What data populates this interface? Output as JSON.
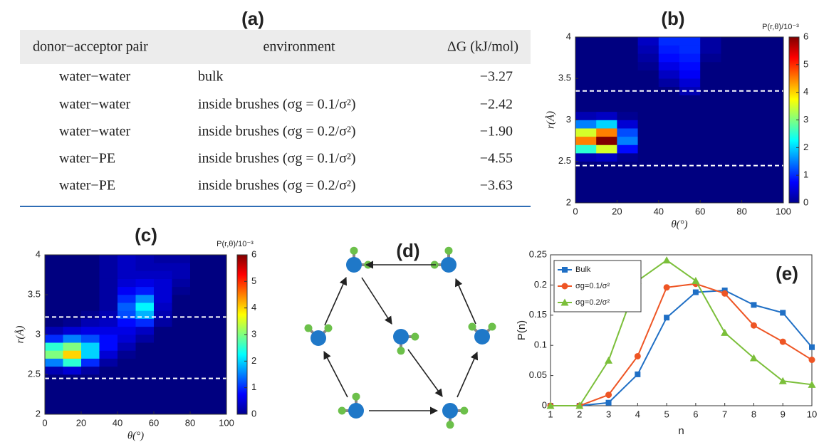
{
  "table": {
    "panel_label": "(a)",
    "header": [
      "donor−acceptor pair",
      "environment",
      "ΔG (kJ/mol)"
    ],
    "rows": [
      [
        "water−water",
        "bulk",
        "−3.27"
      ],
      [
        "water−water",
        "inside brushes (σg = 0.1/σ²)",
        "−2.42"
      ],
      [
        "water−water",
        "inside brushes (σg = 0.2/σ²)",
        "−1.90"
      ],
      [
        "water−PE",
        "inside brushes (σg = 0.1/σ²)",
        "−4.55"
      ],
      [
        "water−PE",
        "inside brushes (σg = 0.2/σ²)",
        "−3.63"
      ]
    ]
  },
  "diagram": {
    "panel_label": "(d)"
  },
  "chart_data": [
    {
      "type": "heatmap",
      "panel_label": "(b)",
      "xlabel": "θ(°)",
      "ylabel": "r(Å)",
      "colorbar_label": "P(r,θ)/10⁻³",
      "colormap": "jet",
      "x_bins": [
        0,
        10,
        20,
        30,
        40,
        50,
        60,
        70,
        80,
        90,
        100
      ],
      "y_bins": [
        2,
        2.1,
        2.2,
        2.3,
        2.4,
        2.5,
        2.6,
        2.7,
        2.8,
        2.9,
        3,
        3.1,
        3.2,
        3.3,
        3.4,
        3.5,
        3.6,
        3.7,
        3.8,
        3.9,
        4
      ],
      "z": [
        [
          0,
          0,
          0,
          0,
          0,
          0,
          0,
          0,
          0,
          0
        ],
        [
          0,
          0,
          0,
          0,
          0,
          0,
          0,
          0,
          0,
          0
        ],
        [
          0,
          0,
          0,
          0,
          0,
          0,
          0,
          0,
          0,
          0
        ],
        [
          0,
          0,
          0,
          0,
          0,
          0,
          0,
          0,
          0,
          0
        ],
        [
          0,
          0,
          0,
          0,
          0,
          0,
          0,
          0,
          0,
          0
        ],
        [
          0.3,
          0.4,
          0.1,
          0,
          0,
          0,
          0,
          0,
          0,
          0
        ],
        [
          2.5,
          3.5,
          0.8,
          0,
          0,
          0,
          0,
          0,
          0,
          0
        ],
        [
          4.5,
          6,
          1.5,
          0,
          0,
          0,
          0,
          0,
          0,
          0
        ],
        [
          3.5,
          4.5,
          1.2,
          0,
          0,
          0,
          0,
          0,
          0,
          0
        ],
        [
          1.5,
          2,
          0.5,
          0,
          0,
          0,
          0,
          0,
          0,
          0
        ],
        [
          0.3,
          0.4,
          0.1,
          0,
          0,
          0,
          0,
          0,
          0,
          0
        ],
        [
          0,
          0,
          0,
          0,
          0,
          0,
          0,
          0,
          0,
          0
        ],
        [
          0,
          0,
          0,
          0,
          0,
          0,
          0,
          0,
          0,
          0
        ],
        [
          0,
          0,
          0,
          0,
          0,
          0.3,
          0,
          0,
          0,
          0
        ],
        [
          0,
          0,
          0,
          0,
          0.2,
          0.5,
          0,
          0,
          0,
          0
        ],
        [
          0,
          0,
          0,
          0,
          0.4,
          0.7,
          0,
          0,
          0,
          0
        ],
        [
          0,
          0,
          0,
          0.1,
          0.6,
          0.8,
          0,
          0,
          0,
          0
        ],
        [
          0,
          0,
          0,
          0.2,
          0.8,
          0.9,
          0.1,
          0,
          0,
          0
        ],
        [
          0,
          0,
          0,
          0.3,
          0.9,
          1,
          0.2,
          0,
          0,
          0
        ],
        [
          0,
          0,
          0,
          0.4,
          1,
          1,
          0.2,
          0,
          0,
          0
        ]
      ],
      "xlim": [
        0,
        100
      ],
      "ylim": [
        2,
        4
      ],
      "xticks": [
        0,
        20,
        40,
        60,
        80,
        100
      ],
      "yticks": [
        2,
        2.5,
        3,
        3.5,
        4
      ],
      "zlim": [
        0,
        6
      ],
      "zticks": [
        0,
        1,
        2,
        3,
        4,
        5,
        6
      ],
      "hlines": [
        3.35,
        2.45
      ]
    },
    {
      "type": "heatmap",
      "panel_label": "(c)",
      "xlabel": "θ(°)",
      "ylabel": "r(Å)",
      "colorbar_label": "P(r,θ)/10⁻³",
      "colormap": "jet",
      "x_bins": [
        0,
        10,
        20,
        30,
        40,
        50,
        60,
        70,
        80,
        90,
        100
      ],
      "y_bins": [
        2,
        2.1,
        2.2,
        2.3,
        2.4,
        2.5,
        2.6,
        2.7,
        2.8,
        2.9,
        3,
        3.1,
        3.2,
        3.3,
        3.4,
        3.5,
        3.6,
        3.7,
        3.8,
        3.9,
        4
      ],
      "z": [
        [
          0,
          0,
          0,
          0,
          0,
          0,
          0,
          0,
          0,
          0
        ],
        [
          0,
          0,
          0,
          0,
          0,
          0,
          0,
          0,
          0,
          0
        ],
        [
          0,
          0,
          0,
          0,
          0,
          0,
          0,
          0,
          0,
          0
        ],
        [
          0,
          0,
          0,
          0,
          0,
          0,
          0,
          0,
          0,
          0
        ],
        [
          0,
          0,
          0,
          0,
          0,
          0,
          0,
          0,
          0,
          0
        ],
        [
          0.3,
          0.5,
          0.2,
          0,
          0,
          0,
          0,
          0,
          0,
          0
        ],
        [
          1.5,
          2.5,
          1,
          0.2,
          0,
          0,
          0,
          0,
          0,
          0
        ],
        [
          3,
          4,
          2,
          0.5,
          0.1,
          0,
          0,
          0,
          0,
          0
        ],
        [
          2.5,
          3,
          2,
          0.8,
          0.3,
          0,
          0,
          0,
          0,
          0
        ],
        [
          1,
          1.5,
          1.2,
          0.8,
          0.5,
          0.2,
          0,
          0,
          0,
          0
        ],
        [
          0.3,
          0.5,
          0.6,
          0.6,
          0.6,
          0.4,
          0,
          0,
          0,
          0
        ],
        [
          0,
          0.1,
          0.3,
          0.4,
          0.8,
          1,
          0.2,
          0,
          0,
          0
        ],
        [
          0,
          0,
          0.1,
          0.3,
          1.2,
          1.8,
          0.3,
          0,
          0,
          0
        ],
        [
          0,
          0,
          0,
          0.2,
          1.3,
          2.2,
          0.4,
          0,
          0,
          0
        ],
        [
          0,
          0,
          0,
          0.2,
          1,
          1.6,
          0.5,
          0,
          0,
          0
        ],
        [
          0,
          0,
          0,
          0.2,
          0.7,
          0.9,
          0.5,
          0.1,
          0,
          0
        ],
        [
          0,
          0,
          0,
          0.2,
          0.5,
          0.6,
          0.5,
          0.2,
          0,
          0
        ],
        [
          0,
          0,
          0,
          0.2,
          0.4,
          0.4,
          0.4,
          0.3,
          0,
          0
        ],
        [
          0,
          0,
          0,
          0.2,
          0.4,
          0.3,
          0.3,
          0.3,
          0,
          0
        ],
        [
          0,
          0,
          0,
          0.2,
          0.4,
          0.3,
          0.2,
          0.2,
          0,
          0
        ]
      ],
      "xlim": [
        0,
        100
      ],
      "ylim": [
        2,
        4
      ],
      "xticks": [
        0,
        20,
        40,
        60,
        80,
        100
      ],
      "yticks": [
        2,
        2.5,
        3,
        3.5,
        4
      ],
      "zlim": [
        0,
        6
      ],
      "zticks": [
        0,
        1,
        2,
        3,
        4,
        5,
        6
      ],
      "hlines": [
        3.22,
        2.45
      ]
    },
    {
      "type": "line",
      "panel_label": "(e)",
      "xlabel": "n",
      "ylabel": "P(n)",
      "legend": "upper left",
      "x": [
        1,
        2,
        3,
        4,
        5,
        6,
        7,
        8,
        9,
        10
      ],
      "xlim": [
        1,
        10
      ],
      "xticks": [
        1,
        2,
        3,
        4,
        5,
        6,
        7,
        8,
        9,
        10
      ],
      "ylim": [
        0,
        0.25
      ],
      "yticks": [
        0,
        0.05,
        0.1,
        0.15,
        0.2,
        0.25
      ],
      "series": [
        {
          "name": "Bulk",
          "color": "#1f6fc5",
          "marker": "square",
          "values": [
            0,
            0,
            0.005,
            0.052,
            0.146,
            0.188,
            0.191,
            0.167,
            0.154,
            0.097
          ]
        },
        {
          "name": "σg=0.1/σ²",
          "color": "#ee5524",
          "marker": "circle",
          "values": [
            0,
            0,
            0.018,
            0.082,
            0.196,
            0.202,
            0.186,
            0.133,
            0.106,
            0.076
          ]
        },
        {
          "name": "σg=0.2/σ²",
          "color": "#7bbf3a",
          "marker": "triangle",
          "values": [
            0,
            0,
            0.075,
            0.207,
            0.241,
            0.207,
            0.121,
            0.079,
            0.041,
            0.035
          ]
        }
      ]
    }
  ]
}
